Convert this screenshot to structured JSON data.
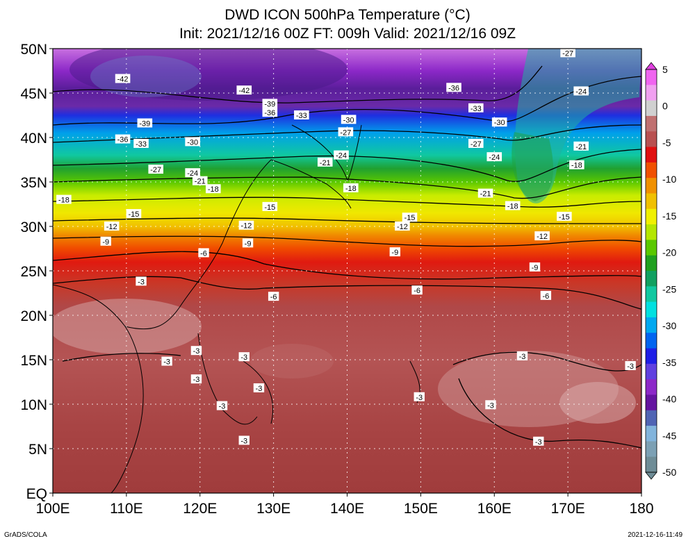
{
  "title": "DWD ICON 500hPa Temperature (°C)",
  "subtitle": "Init: 2021/12/16 00Z  FT: 009h  Valid: 2021/12/16 09Z",
  "footer_left": "GrADS/COLA",
  "footer_right": "2021-12-16-11:49",
  "lon_labels": [
    "100E",
    "110E",
    "120E",
    "130E",
    "140E",
    "150E",
    "160E",
    "170E",
    "180"
  ],
  "lat_labels": [
    "50N",
    "45N",
    "40N",
    "35N",
    "30N",
    "25N",
    "20N",
    "15N",
    "10N",
    "5N",
    "EQ"
  ],
  "colorbar": {
    "labels": [
      "5",
      "0",
      "-5",
      "-10",
      "-15",
      "-20",
      "-25",
      "-30",
      "-35",
      "-40",
      "-45",
      "-50"
    ],
    "colors": [
      "#f064f0",
      "#f0a0f0",
      "#d0d0d0",
      "#c07070",
      "#b85050",
      "#e01010",
      "#f05000",
      "#f09000",
      "#f0c000",
      "#f0f000",
      "#b4e600",
      "#5ac800",
      "#20a020",
      "#10a060",
      "#10c8a0",
      "#00e0e0",
      "#00a8f0",
      "#0064f0",
      "#1e1ee6",
      "#6040e0",
      "#8c28c8",
      "#6414a0",
      "#5064b4",
      "#82b4dc",
      "#7ca0b4",
      "#6e8c96"
    ]
  },
  "contour_labels": [
    {
      "value": "-42",
      "lon": 109.5,
      "lat": 46.6
    },
    {
      "value": "-42",
      "lon": 126.0,
      "lat": 45.3
    },
    {
      "value": "-39",
      "lon": 112.5,
      "lat": 41.6
    },
    {
      "value": "-36",
      "lon": 109.5,
      "lat": 39.8
    },
    {
      "value": "-33",
      "lon": 112.0,
      "lat": 39.3
    },
    {
      "value": "-30",
      "lon": 119.0,
      "lat": 39.5
    },
    {
      "value": "-39",
      "lon": 129.5,
      "lat": 43.8
    },
    {
      "value": "-36",
      "lon": 129.5,
      "lat": 42.8
    },
    {
      "value": "-33",
      "lon": 133.8,
      "lat": 42.5
    },
    {
      "value": "-30",
      "lon": 140.2,
      "lat": 42.0
    },
    {
      "value": "-27",
      "lon": 139.8,
      "lat": 40.6
    },
    {
      "value": "-36",
      "lon": 154.5,
      "lat": 45.6
    },
    {
      "value": "-33",
      "lon": 157.5,
      "lat": 43.3
    },
    {
      "value": "-30",
      "lon": 160.7,
      "lat": 41.7
    },
    {
      "value": "-27",
      "lon": 157.5,
      "lat": 39.3
    },
    {
      "value": "-27",
      "lon": 170.0,
      "lat": 49.5
    },
    {
      "value": "-24",
      "lon": 171.8,
      "lat": 45.2
    },
    {
      "value": "-21",
      "lon": 171.8,
      "lat": 39.0
    },
    {
      "value": "-18",
      "lon": 171.2,
      "lat": 36.9
    },
    {
      "value": "-24",
      "lon": 160.0,
      "lat": 37.8
    },
    {
      "value": "-21",
      "lon": 158.8,
      "lat": 33.7
    },
    {
      "value": "-18",
      "lon": 162.5,
      "lat": 32.3
    },
    {
      "value": "-15",
      "lon": 169.5,
      "lat": 31.1
    },
    {
      "value": "-12",
      "lon": 166.5,
      "lat": 28.9
    },
    {
      "value": "-9",
      "lon": 165.5,
      "lat": 25.4
    },
    {
      "value": "-6",
      "lon": 167.0,
      "lat": 22.2
    },
    {
      "value": "-27",
      "lon": 114.0,
      "lat": 36.4
    },
    {
      "value": "-24",
      "lon": 119.0,
      "lat": 36.0
    },
    {
      "value": "-21",
      "lon": 120.0,
      "lat": 35.1
    },
    {
      "value": "-18",
      "lon": 121.8,
      "lat": 34.2
    },
    {
      "value": "-18",
      "lon": 101.5,
      "lat": 33.0
    },
    {
      "value": "-15",
      "lon": 111.0,
      "lat": 31.4
    },
    {
      "value": "-12",
      "lon": 108.0,
      "lat": 30.0
    },
    {
      "value": "-9",
      "lon": 107.2,
      "lat": 28.3
    },
    {
      "value": "-6",
      "lon": 120.5,
      "lat": 27.0
    },
    {
      "value": "-3",
      "lon": 112.0,
      "lat": 23.8
    },
    {
      "value": "-21",
      "lon": 137.0,
      "lat": 37.2
    },
    {
      "value": "-24",
      "lon": 139.2,
      "lat": 38.0
    },
    {
      "value": "-18",
      "lon": 140.5,
      "lat": 34.3
    },
    {
      "value": "-15",
      "lon": 129.5,
      "lat": 32.2
    },
    {
      "value": "-15",
      "lon": 148.5,
      "lat": 31.0
    },
    {
      "value": "-12",
      "lon": 126.3,
      "lat": 30.1
    },
    {
      "value": "-12",
      "lon": 147.5,
      "lat": 30.0
    },
    {
      "value": "-9",
      "lon": 126.5,
      "lat": 28.1
    },
    {
      "value": "-9",
      "lon": 146.5,
      "lat": 27.1
    },
    {
      "value": "-6",
      "lon": 130.0,
      "lat": 22.1
    },
    {
      "value": "-6",
      "lon": 149.5,
      "lat": 22.8
    },
    {
      "value": "-3",
      "lon": 115.5,
      "lat": 14.8
    },
    {
      "value": "-3",
      "lon": 119.5,
      "lat": 16.0
    },
    {
      "value": "-3",
      "lon": 119.5,
      "lat": 12.8
    },
    {
      "value": "-3",
      "lon": 126.0,
      "lat": 15.3
    },
    {
      "value": "-3",
      "lon": 128.0,
      "lat": 11.8
    },
    {
      "value": "-3",
      "lon": 123.0,
      "lat": 9.8
    },
    {
      "value": "-3",
      "lon": 126.0,
      "lat": 5.9
    },
    {
      "value": "-3",
      "lon": 149.8,
      "lat": 10.8
    },
    {
      "value": "-3",
      "lon": 159.5,
      "lat": 9.9
    },
    {
      "value": "-3",
      "lon": 163.8,
      "lat": 15.4
    },
    {
      "value": "-3",
      "lon": 178.5,
      "lat": 14.3
    },
    {
      "value": "-3",
      "lon": 166.0,
      "lat": 5.8
    }
  ]
}
